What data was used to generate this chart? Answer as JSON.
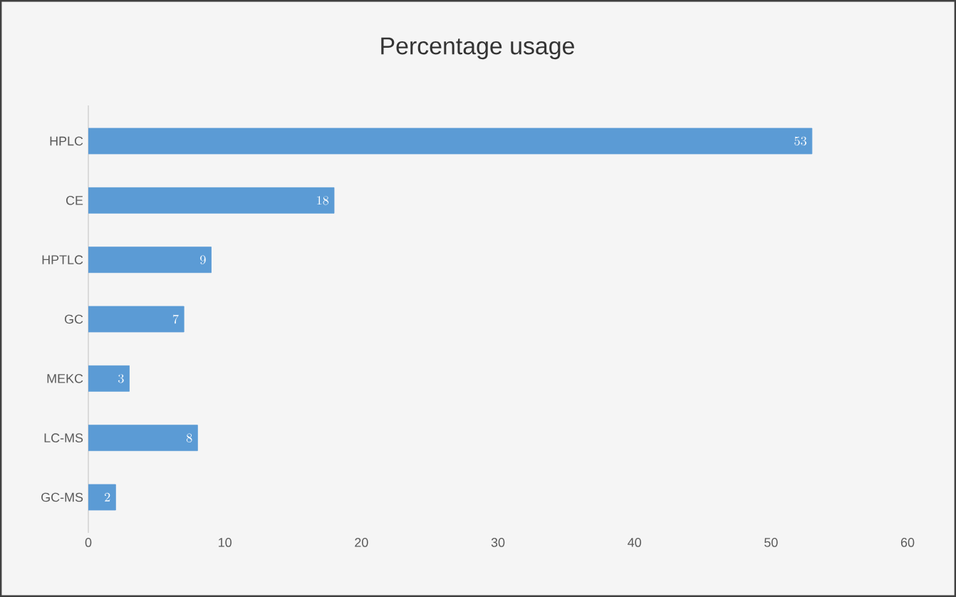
{
  "chart_data": {
    "type": "bar",
    "orientation": "horizontal",
    "title": "Percentage usage",
    "categories": [
      "HPLC",
      "CE",
      "HPTLC",
      "GC",
      "MEKC",
      "LC-MS",
      "GC-MS"
    ],
    "values": [
      53,
      18,
      9,
      7,
      3,
      8,
      2
    ],
    "color": "#5b9bd5",
    "xlim": [
      0,
      60
    ],
    "xticks": [
      0,
      10,
      20,
      30,
      40,
      50,
      60
    ],
    "data_labels": true
  }
}
